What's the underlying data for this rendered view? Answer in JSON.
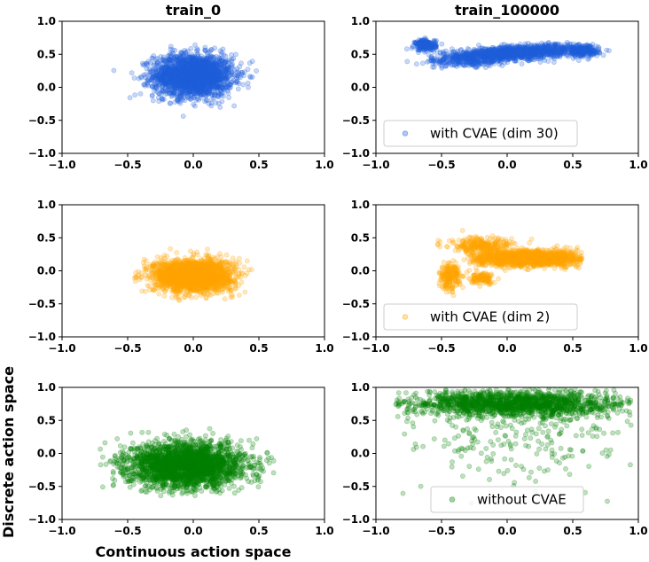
{
  "chart_data": {
    "type": "scatter",
    "layout": "3x2 grid",
    "column_titles": [
      "train_0",
      "train_100000"
    ],
    "xlabel": "Continuous action space",
    "ylabel": "Discrete action space",
    "xlim": [
      -1.0,
      1.0
    ],
    "ylim": [
      -1.0,
      1.0
    ],
    "x_ticks": [
      "−1.0",
      "−0.5",
      "0.0",
      "0.5",
      "1.0"
    ],
    "y_ticks": [
      "−1.0",
      "−0.5",
      "0.0",
      "0.5",
      "1.0"
    ],
    "grid": false,
    "marker_alpha": 0.25,
    "rows": [
      {
        "legend": "with CVAE (dim 30)",
        "color": "#1f5fdb",
        "panels": [
          {
            "clusters": [
              {
                "cx": 0.0,
                "cy": 0.18,
                "sx": 0.15,
                "sy": 0.16,
                "n": 2200,
                "clip_x": [
                  -0.62,
                  0.6
                ],
                "clip_y": [
                  -0.45,
                  0.7
                ]
              }
            ]
          },
          {
            "clusters": [
              {
                "cx": 0.05,
                "cy": 0.52,
                "sx": 0.3,
                "sy": 0.05,
                "n": 1400,
                "clip_x": [
                  -0.6,
                  0.68
                ],
                "clip_y": [
                  0.3,
                  0.68
                ],
                "slope": 0.12
              },
              {
                "cx": -0.62,
                "cy": 0.64,
                "sx": 0.04,
                "sy": 0.04,
                "n": 220
              },
              {
                "cx": 0.58,
                "cy": 0.54,
                "sx": 0.06,
                "sy": 0.04,
                "n": 180
              },
              {
                "cx": -0.3,
                "cy": 0.38,
                "sx": 0.15,
                "sy": 0.04,
                "n": 150
              }
            ]
          }
        ]
      },
      {
        "legend": "with CVAE (dim 2)",
        "color": "#ffa500",
        "panels": [
          {
            "clusters": [
              {
                "cx": 0.0,
                "cy": -0.07,
                "sx": 0.15,
                "sy": 0.12,
                "n": 2200,
                "clip_x": [
                  -0.45,
                  0.45
                ],
                "clip_y": [
                  -0.45,
                  0.38
                ]
              }
            ]
          },
          {
            "clusters": [
              {
                "cx": 0.18,
                "cy": 0.19,
                "sx": 0.22,
                "sy": 0.06,
                "n": 1500,
                "clip_x": [
                  -0.3,
                  0.58
                ],
                "clip_y": [
                  0.0,
                  0.38
                ]
              },
              {
                "cx": -0.44,
                "cy": -0.08,
                "sx": 0.04,
                "sy": 0.1,
                "n": 200
              },
              {
                "cx": -0.2,
                "cy": 0.38,
                "sx": 0.12,
                "sy": 0.06,
                "n": 260
              },
              {
                "cx": -0.18,
                "cy": -0.12,
                "sx": 0.05,
                "sy": 0.04,
                "n": 120
              }
            ]
          }
        ]
      },
      {
        "legend": "without CVAE",
        "color": "#008000",
        "panels": [
          {
            "clusters": [
              {
                "cx": -0.05,
                "cy": -0.18,
                "sx": 0.22,
                "sy": 0.17,
                "n": 2600,
                "clip_x": [
                  -0.72,
                  0.7
                ],
                "clip_y": [
                  -0.65,
                  0.6
                ]
              }
            ]
          },
          {
            "clusters": [
              {
                "cx": 0.05,
                "cy": 0.75,
                "sx": 0.42,
                "sy": 0.1,
                "n": 1700,
                "clip_x": [
                  -0.85,
                  0.95
                ],
                "clip_y": [
                  0.4,
                  1.0
                ]
              },
              {
                "cx": 0.1,
                "cy": 0.2,
                "sx": 0.45,
                "sy": 0.35,
                "n": 220,
                "clip_x": [
                  -0.85,
                  0.95
                ],
                "clip_y": [
                  -0.85,
                  0.9
                ]
              }
            ]
          }
        ]
      }
    ]
  }
}
